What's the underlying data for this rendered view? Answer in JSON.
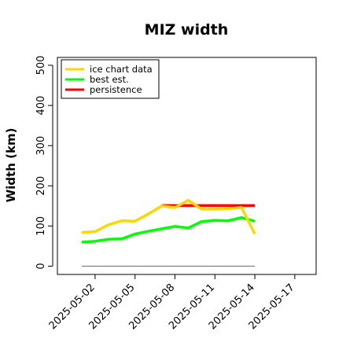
{
  "chart_data": {
    "type": "line",
    "title": "MIZ width",
    "xlabel": "",
    "ylabel": "Width (km)",
    "x_start": "2025-05-01",
    "x_range": [
      "2025-05-01",
      "2025-05-17"
    ],
    "ylim": [
      0,
      500
    ],
    "yticks": [
      0,
      100,
      200,
      300,
      400,
      500
    ],
    "ytick_labels": [
      "0",
      "100",
      "200",
      "300",
      "400",
      "500"
    ],
    "xticks": [
      "2025-05-02",
      "2025-05-05",
      "2025-05-08",
      "2025-05-11",
      "2025-05-14",
      "2025-05-17"
    ],
    "xtick_labels": [
      "2025-05-02",
      "2025-05-05",
      "2025-05-08",
      "2025-05-11",
      "2025-05-14",
      "2025-05-17"
    ],
    "grid": false,
    "legend_position": "top-left",
    "series": [
      {
        "name": "ice chart data",
        "color": "#FFD700",
        "x": [
          "2025-05-01",
          "2025-05-02",
          "2025-05-03",
          "2025-05-04",
          "2025-05-05",
          "2025-05-06",
          "2025-05-07",
          "2025-05-08",
          "2025-05-09",
          "2025-05-10",
          "2025-05-11",
          "2025-05-12",
          "2025-05-13",
          "2025-05-14"
        ],
        "y": [
          84,
          86,
          103,
          113,
          112,
          130,
          150,
          146,
          164,
          142,
          142,
          143,
          146,
          80
        ]
      },
      {
        "name": "best est.",
        "color": "#00FF00",
        "x": [
          "2025-05-01",
          "2025-05-02",
          "2025-05-03",
          "2025-05-04",
          "2025-05-05",
          "2025-05-06",
          "2025-05-07",
          "2025-05-08",
          "2025-05-09",
          "2025-05-10",
          "2025-05-11",
          "2025-05-12",
          "2025-05-13",
          "2025-05-14"
        ],
        "y": [
          60,
          62,
          67,
          68,
          80,
          87,
          93,
          99,
          95,
          111,
          114,
          113,
          121,
          112
        ]
      },
      {
        "name": "persistence",
        "color": "#FF0000",
        "x": [
          "2025-05-07",
          "2025-05-14"
        ],
        "y": [
          151,
          151
        ]
      },
      {
        "name": "",
        "color": "#808080",
        "x": [
          "2025-05-01",
          "2025-05-14"
        ],
        "y": [
          0,
          0
        ]
      }
    ]
  }
}
